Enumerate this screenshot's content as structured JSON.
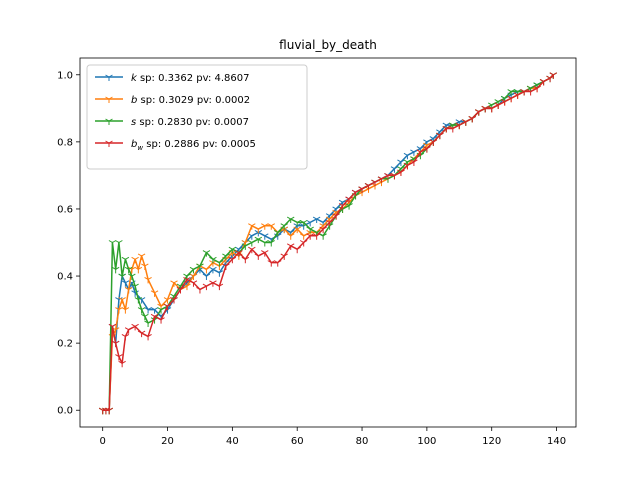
{
  "chart_data": {
    "type": "line",
    "title": "fluvial_by_death",
    "xlabel": "",
    "ylabel": "",
    "xlim": [
      -7,
      146
    ],
    "ylim": [
      -0.05,
      1.05
    ],
    "xticks": [
      0,
      20,
      40,
      60,
      80,
      100,
      120,
      140
    ],
    "yticks": [
      0.0,
      0.2,
      0.4,
      0.6,
      0.8,
      1.0
    ],
    "xtick_labels": [
      "0",
      "20",
      "40",
      "60",
      "80",
      "100",
      "120",
      "140"
    ],
    "ytick_labels": [
      "0.0",
      "0.2",
      "0.4",
      "0.6",
      "0.8",
      "1.0"
    ],
    "grid": false,
    "legend_position": "top-left",
    "marker": "tri_down",
    "series": [
      {
        "name": "k",
        "label_rest": " sp: 0.3362 pv: 4.8607",
        "color": "#1f77b4",
        "points": [
          [
            0,
            0
          ],
          [
            1,
            0
          ],
          [
            2,
            0
          ],
          [
            3,
            0.25
          ],
          [
            4,
            0.2
          ],
          [
            5,
            0.33
          ],
          [
            6,
            0.4
          ],
          [
            7,
            0.38
          ],
          [
            8,
            0.36
          ],
          [
            9,
            0.38
          ],
          [
            10,
            0.35
          ],
          [
            12,
            0.33
          ],
          [
            14,
            0.3
          ],
          [
            16,
            0.3
          ],
          [
            18,
            0.28
          ],
          [
            20,
            0.3
          ],
          [
            22,
            0.33
          ],
          [
            24,
            0.36
          ],
          [
            26,
            0.38
          ],
          [
            28,
            0.4
          ],
          [
            30,
            0.42
          ],
          [
            32,
            0.4
          ],
          [
            34,
            0.42
          ],
          [
            36,
            0.41
          ],
          [
            38,
            0.44
          ],
          [
            40,
            0.46
          ],
          [
            42,
            0.48
          ],
          [
            44,
            0.5
          ],
          [
            46,
            0.52
          ],
          [
            48,
            0.53
          ],
          [
            50,
            0.52
          ],
          [
            52,
            0.51
          ],
          [
            54,
            0.52
          ],
          [
            56,
            0.54
          ],
          [
            58,
            0.53
          ],
          [
            60,
            0.55
          ],
          [
            62,
            0.55
          ],
          [
            64,
            0.56
          ],
          [
            66,
            0.57
          ],
          [
            68,
            0.56
          ],
          [
            70,
            0.58
          ],
          [
            72,
            0.6
          ],
          [
            74,
            0.62
          ],
          [
            76,
            0.63
          ],
          [
            78,
            0.65
          ],
          [
            80,
            0.66
          ],
          [
            82,
            0.67
          ],
          [
            84,
            0.68
          ],
          [
            86,
            0.69
          ],
          [
            88,
            0.7
          ],
          [
            90,
            0.72
          ],
          [
            92,
            0.74
          ],
          [
            94,
            0.76
          ],
          [
            96,
            0.77
          ],
          [
            98,
            0.78
          ],
          [
            100,
            0.8
          ],
          [
            102,
            0.81
          ],
          [
            104,
            0.83
          ],
          [
            106,
            0.85
          ],
          [
            108,
            0.85
          ],
          [
            110,
            0.86
          ],
          [
            112,
            0.86
          ],
          [
            114,
            0.87
          ],
          [
            116,
            0.89
          ],
          [
            118,
            0.9
          ],
          [
            120,
            0.9
          ],
          [
            122,
            0.91
          ],
          [
            124,
            0.93
          ],
          [
            126,
            0.94
          ],
          [
            128,
            0.95
          ],
          [
            130,
            0.95
          ],
          [
            132,
            0.96
          ],
          [
            134,
            0.97
          ],
          [
            136,
            0.98
          ],
          [
            138,
            0.99
          ],
          [
            139,
            1.0
          ]
        ]
      },
      {
        "name": "b",
        "label_rest": " sp: 0.3029 pv: 0.0002",
        "color": "#ff7f0e",
        "points": [
          [
            0,
            0
          ],
          [
            1,
            0
          ],
          [
            2,
            0
          ],
          [
            3,
            0.22
          ],
          [
            4,
            0.24
          ],
          [
            5,
            0.3
          ],
          [
            6,
            0.33
          ],
          [
            7,
            0.3
          ],
          [
            8,
            0.36
          ],
          [
            9,
            0.42
          ],
          [
            10,
            0.45
          ],
          [
            11,
            0.42
          ],
          [
            12,
            0.46
          ],
          [
            13,
            0.43
          ],
          [
            14,
            0.39
          ],
          [
            16,
            0.35
          ],
          [
            18,
            0.31
          ],
          [
            20,
            0.33
          ],
          [
            22,
            0.38
          ],
          [
            24,
            0.36
          ],
          [
            26,
            0.37
          ],
          [
            28,
            0.4
          ],
          [
            30,
            0.43
          ],
          [
            32,
            0.42
          ],
          [
            34,
            0.44
          ],
          [
            36,
            0.43
          ],
          [
            38,
            0.45
          ],
          [
            40,
            0.47
          ],
          [
            42,
            0.46
          ],
          [
            44,
            0.5
          ],
          [
            46,
            0.55
          ],
          [
            48,
            0.54
          ],
          [
            50,
            0.55
          ],
          [
            52,
            0.55
          ],
          [
            54,
            0.53
          ],
          [
            56,
            0.54
          ],
          [
            58,
            0.52
          ],
          [
            60,
            0.54
          ],
          [
            62,
            0.52
          ],
          [
            64,
            0.53
          ],
          [
            66,
            0.53
          ],
          [
            68,
            0.55
          ],
          [
            70,
            0.57
          ],
          [
            72,
            0.59
          ],
          [
            74,
            0.6
          ],
          [
            76,
            0.62
          ],
          [
            78,
            0.64
          ],
          [
            80,
            0.65
          ],
          [
            82,
            0.66
          ],
          [
            84,
            0.67
          ],
          [
            86,
            0.68
          ],
          [
            88,
            0.69
          ],
          [
            90,
            0.7
          ],
          [
            92,
            0.71
          ],
          [
            94,
            0.73
          ],
          [
            96,
            0.75
          ],
          [
            98,
            0.77
          ],
          [
            100,
            0.79
          ],
          [
            102,
            0.8
          ],
          [
            104,
            0.82
          ],
          [
            106,
            0.84
          ],
          [
            108,
            0.85
          ],
          [
            110,
            0.85
          ],
          [
            112,
            0.86
          ],
          [
            114,
            0.87
          ],
          [
            116,
            0.89
          ],
          [
            118,
            0.9
          ],
          [
            120,
            0.9
          ],
          [
            122,
            0.91
          ],
          [
            124,
            0.92
          ],
          [
            126,
            0.93
          ],
          [
            128,
            0.94
          ],
          [
            130,
            0.95
          ],
          [
            132,
            0.96
          ],
          [
            134,
            0.96
          ],
          [
            136,
            0.98
          ],
          [
            138,
            0.99
          ],
          [
            139,
            1.0
          ]
        ]
      },
      {
        "name": "s",
        "label_rest": " sp: 0.2830 pv: 0.0007",
        "color": "#2ca02c",
        "points": [
          [
            0,
            0
          ],
          [
            1,
            0
          ],
          [
            2,
            0
          ],
          [
            3,
            0.5
          ],
          [
            4,
            0.42
          ],
          [
            5,
            0.5
          ],
          [
            6,
            0.4
          ],
          [
            7,
            0.45
          ],
          [
            8,
            0.42
          ],
          [
            9,
            0.4
          ],
          [
            10,
            0.37
          ],
          [
            11,
            0.33
          ],
          [
            12,
            0.3
          ],
          [
            13,
            0.28
          ],
          [
            14,
            0.26
          ],
          [
            16,
            0.27
          ],
          [
            18,
            0.3
          ],
          [
            20,
            0.31
          ],
          [
            22,
            0.34
          ],
          [
            24,
            0.37
          ],
          [
            26,
            0.4
          ],
          [
            28,
            0.42
          ],
          [
            30,
            0.43
          ],
          [
            32,
            0.47
          ],
          [
            34,
            0.45
          ],
          [
            36,
            0.44
          ],
          [
            38,
            0.46
          ],
          [
            40,
            0.48
          ],
          [
            42,
            0.47
          ],
          [
            44,
            0.49
          ],
          [
            46,
            0.5
          ],
          [
            48,
            0.51
          ],
          [
            50,
            0.5
          ],
          [
            52,
            0.5
          ],
          [
            54,
            0.53
          ],
          [
            56,
            0.55
          ],
          [
            58,
            0.57
          ],
          [
            60,
            0.56
          ],
          [
            62,
            0.56
          ],
          [
            64,
            0.54
          ],
          [
            66,
            0.53
          ],
          [
            68,
            0.52
          ],
          [
            70,
            0.55
          ],
          [
            72,
            0.58
          ],
          [
            74,
            0.6
          ],
          [
            76,
            0.61
          ],
          [
            78,
            0.64
          ],
          [
            80,
            0.66
          ],
          [
            82,
            0.67
          ],
          [
            84,
            0.68
          ],
          [
            86,
            0.69
          ],
          [
            88,
            0.69
          ],
          [
            90,
            0.7
          ],
          [
            92,
            0.72
          ],
          [
            94,
            0.74
          ],
          [
            96,
            0.75
          ],
          [
            98,
            0.76
          ],
          [
            100,
            0.78
          ],
          [
            102,
            0.8
          ],
          [
            104,
            0.82
          ],
          [
            106,
            0.84
          ],
          [
            108,
            0.85
          ],
          [
            110,
            0.85
          ],
          [
            112,
            0.86
          ],
          [
            114,
            0.87
          ],
          [
            116,
            0.89
          ],
          [
            118,
            0.9
          ],
          [
            120,
            0.91
          ],
          [
            122,
            0.92
          ],
          [
            124,
            0.93
          ],
          [
            126,
            0.95
          ],
          [
            128,
            0.95
          ],
          [
            130,
            0.95
          ],
          [
            132,
            0.96
          ],
          [
            134,
            0.97
          ],
          [
            136,
            0.98
          ],
          [
            138,
            0.99
          ],
          [
            139,
            1.0
          ]
        ]
      },
      {
        "name": "b",
        "name_sub": "w",
        "label_rest": " sp: 0.2886 pv: 0.0005",
        "color": "#d62728",
        "points": [
          [
            0,
            0
          ],
          [
            1,
            0
          ],
          [
            2,
            0
          ],
          [
            3,
            0.25
          ],
          [
            4,
            0.2
          ],
          [
            5,
            0.16
          ],
          [
            6,
            0.14
          ],
          [
            7,
            0.22
          ],
          [
            8,
            0.24
          ],
          [
            10,
            0.25
          ],
          [
            12,
            0.23
          ],
          [
            14,
            0.22
          ],
          [
            16,
            0.28
          ],
          [
            18,
            0.27
          ],
          [
            20,
            0.31
          ],
          [
            22,
            0.33
          ],
          [
            24,
            0.36
          ],
          [
            26,
            0.39
          ],
          [
            28,
            0.38
          ],
          [
            30,
            0.36
          ],
          [
            32,
            0.37
          ],
          [
            34,
            0.38
          ],
          [
            36,
            0.37
          ],
          [
            38,
            0.43
          ],
          [
            40,
            0.45
          ],
          [
            42,
            0.47
          ],
          [
            44,
            0.45
          ],
          [
            46,
            0.48
          ],
          [
            48,
            0.46
          ],
          [
            50,
            0.47
          ],
          [
            52,
            0.44
          ],
          [
            54,
            0.44
          ],
          [
            56,
            0.46
          ],
          [
            58,
            0.49
          ],
          [
            60,
            0.48
          ],
          [
            62,
            0.5
          ],
          [
            64,
            0.52
          ],
          [
            66,
            0.52
          ],
          [
            68,
            0.54
          ],
          [
            70,
            0.56
          ],
          [
            72,
            0.58
          ],
          [
            74,
            0.61
          ],
          [
            76,
            0.63
          ],
          [
            78,
            0.65
          ],
          [
            80,
            0.66
          ],
          [
            82,
            0.67
          ],
          [
            84,
            0.68
          ],
          [
            86,
            0.69
          ],
          [
            88,
            0.7
          ],
          [
            90,
            0.7
          ],
          [
            92,
            0.71
          ],
          [
            94,
            0.73
          ],
          [
            96,
            0.74
          ],
          [
            98,
            0.77
          ],
          [
            100,
            0.78
          ],
          [
            102,
            0.8
          ],
          [
            104,
            0.82
          ],
          [
            106,
            0.84
          ],
          [
            108,
            0.84
          ],
          [
            110,
            0.85
          ],
          [
            112,
            0.86
          ],
          [
            114,
            0.87
          ],
          [
            116,
            0.89
          ],
          [
            118,
            0.9
          ],
          [
            120,
            0.9
          ],
          [
            122,
            0.91
          ],
          [
            124,
            0.92
          ],
          [
            126,
            0.93
          ],
          [
            128,
            0.94
          ],
          [
            130,
            0.95
          ],
          [
            132,
            0.95
          ],
          [
            134,
            0.96
          ],
          [
            136,
            0.98
          ],
          [
            138,
            0.99
          ],
          [
            139,
            1.0
          ]
        ]
      }
    ]
  }
}
